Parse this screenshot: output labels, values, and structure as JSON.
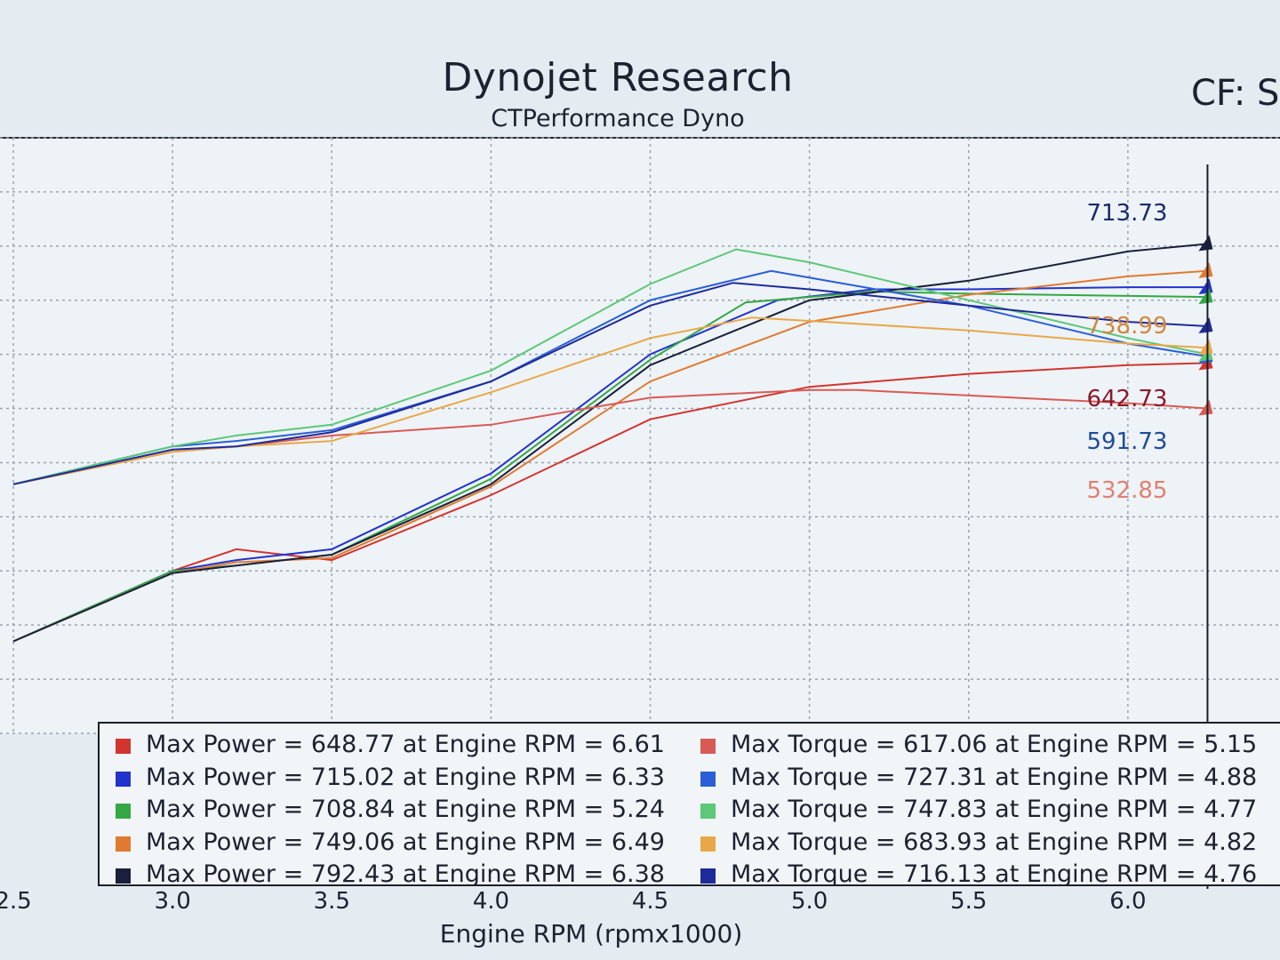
{
  "header": {
    "title": "Dynojet Research",
    "subtitle": "CTPerformance Dyno",
    "cf_label": "CF: S"
  },
  "chart_data": {
    "type": "line",
    "title": "Dynojet Research",
    "subtitle": "CTPerformance Dyno",
    "xlabel": "Engine RPM (rpmx1000)",
    "ylabel": "",
    "x_ticks": [
      "2.5",
      "3.0",
      "3.5",
      "4.0",
      "4.5",
      "5.0",
      "5.5",
      "6.0"
    ],
    "xlim": [
      2.5,
      6.5
    ],
    "ylim": [
      300,
      850
    ],
    "grid": true,
    "legend_position": "bottom",
    "cursor_x": 6.25,
    "cursor_values": [
      "713.73",
      "738.99",
      "642.73",
      "591.73",
      "532.85"
    ],
    "cursor_value_colors": [
      "#1a2a6c",
      "#d0873a",
      "#8a1a2a",
      "#1f4a9a",
      "#e08070"
    ],
    "power_series": [
      {
        "name": "Max Power = 648.77 at Engine RPM = 6.61",
        "color": "#d2352f",
        "x": [
          2.5,
          3.0,
          3.2,
          3.5,
          4.0,
          4.5,
          5.0,
          5.5,
          6.0,
          6.25
        ],
        "y": [
          385,
          450,
          470,
          460,
          520,
          590,
          620,
          632,
          640,
          642
        ]
      },
      {
        "name": "Max Power = 715.02 at Engine RPM = 6.33",
        "color": "#2233cc",
        "x": [
          2.5,
          3.0,
          3.2,
          3.5,
          4.0,
          4.5,
          4.9,
          5.2,
          5.5,
          6.0,
          6.25
        ],
        "y": [
          385,
          450,
          460,
          470,
          540,
          650,
          700,
          710,
          710,
          712,
          712
        ]
      },
      {
        "name": "Max Power = 708.84 at Engine RPM = 5.24",
        "color": "#33a844",
        "x": [
          2.5,
          3.0,
          3.2,
          3.5,
          4.0,
          4.5,
          4.8,
          5.2,
          5.5,
          6.0,
          6.25
        ],
        "y": [
          385,
          450,
          455,
          465,
          535,
          645,
          698,
          708,
          706,
          704,
          703
        ]
      },
      {
        "name": "Max Power = 749.06 at Engine RPM = 6.49",
        "color": "#e07a30",
        "x": [
          2.5,
          3.0,
          3.2,
          3.5,
          4.0,
          4.5,
          5.0,
          5.5,
          6.0,
          6.25
        ],
        "y": [
          385,
          448,
          458,
          462,
          528,
          625,
          680,
          705,
          722,
          727
        ]
      },
      {
        "name": "Max Power = 792.43 at Engine RPM = 6.38",
        "color": "#1a1f3d",
        "x": [
          2.5,
          3.0,
          3.2,
          3.5,
          4.0,
          4.5,
          5.0,
          5.5,
          6.0,
          6.25
        ],
        "y": [
          385,
          448,
          455,
          465,
          530,
          640,
          700,
          718,
          745,
          752
        ]
      }
    ],
    "torque_series": [
      {
        "name": "Max Torque = 617.06 at Engine RPM = 5.15",
        "color": "#d85a55",
        "x": [
          2.5,
          3.0,
          3.2,
          3.5,
          4.0,
          4.5,
          5.0,
          5.15,
          5.5,
          6.0,
          6.25
        ],
        "y": [
          530,
          560,
          565,
          575,
          585,
          610,
          617,
          617,
          612,
          605,
          600
        ]
      },
      {
        "name": "Max Torque = 727.31 at Engine RPM = 4.88",
        "color": "#2a5fd8",
        "x": [
          2.5,
          3.0,
          3.2,
          3.5,
          4.0,
          4.5,
          4.88,
          5.5,
          6.0,
          6.25
        ],
        "y": [
          530,
          565,
          570,
          580,
          625,
          700,
          727,
          695,
          660,
          648
        ]
      },
      {
        "name": "Max Torque = 747.83 at Engine RPM = 4.77",
        "color": "#5cc878",
        "x": [
          2.5,
          3.0,
          3.2,
          3.5,
          4.0,
          4.5,
          4.77,
          5.0,
          5.5,
          6.0,
          6.25
        ],
        "y": [
          530,
          565,
          575,
          585,
          635,
          715,
          747,
          735,
          700,
          665,
          650
        ]
      },
      {
        "name": "Max Torque = 683.93 at Engine RPM = 4.82",
        "color": "#e8a848",
        "x": [
          2.5,
          3.0,
          3.2,
          3.5,
          4.0,
          4.5,
          4.82,
          5.5,
          6.0,
          6.25
        ],
        "y": [
          530,
          560,
          565,
          570,
          615,
          665,
          684,
          672,
          660,
          656
        ]
      },
      {
        "name": "Max Torque = 716.13 at Engine RPM = 4.76",
        "color": "#1f2a9a",
        "x": [
          2.5,
          3.0,
          3.2,
          3.5,
          4.0,
          4.5,
          4.76,
          5.0,
          5.5,
          6.0,
          6.25
        ],
        "y": [
          530,
          562,
          565,
          578,
          625,
          695,
          716,
          710,
          695,
          680,
          676
        ]
      }
    ]
  }
}
